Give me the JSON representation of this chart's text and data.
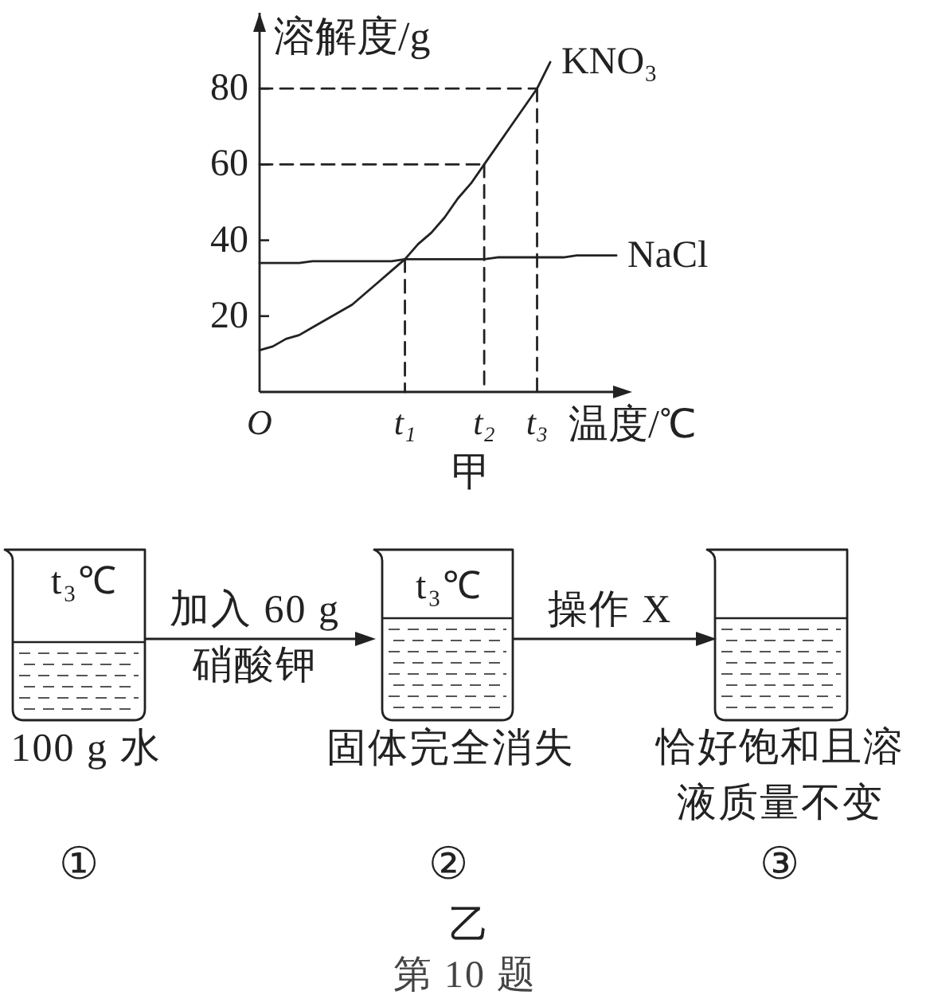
{
  "chart_data": [
    {
      "type": "line",
      "xlabel": "温度/℃",
      "ylabel": "溶解度/g",
      "categories": [
        "O",
        null,
        null,
        null,
        null,
        null,
        null,
        null,
        null,
        null,
        null,
        "t₁",
        null,
        null,
        null,
        null,
        null,
        "t₂",
        null,
        null,
        null,
        "t₃",
        null,
        null,
        null,
        null,
        null,
        null
      ],
      "series": [
        {
          "name": "KNO₃",
          "color": "#222222",
          "values": [
            11,
            12,
            14,
            15,
            17,
            19,
            21,
            23,
            26,
            29,
            32,
            35,
            39,
            42,
            46,
            51,
            55,
            60,
            65,
            70,
            75,
            80,
            87,
            null,
            null,
            null,
            null,
            null
          ]
        },
        {
          "name": "NaCl",
          "color": "#222222",
          "values": [
            34,
            34,
            34,
            34,
            34.5,
            34.5,
            34.5,
            34.5,
            34.5,
            34.5,
            34.5,
            35,
            35,
            35,
            35,
            35,
            35,
            35,
            35.5,
            35.5,
            35.5,
            35.5,
            35.5,
            35.5,
            36,
            36,
            36,
            36
          ]
        },
        {
          "color": "#222222",
          "line_style": "dashed",
          "values": [
            80,
            80,
            80,
            80,
            80,
            80,
            80,
            80,
            80,
            80,
            80,
            80,
            80,
            80,
            80,
            80,
            80,
            80,
            80,
            80,
            80,
            80,
            null,
            null,
            null,
            null,
            null,
            null
          ]
        },
        {
          "color": "#222222",
          "line_style": "dashed",
          "x": [
            "t₃",
            "t₃"
          ],
          "values": [
            80,
            0
          ]
        },
        {
          "color": "#222222",
          "line_style": "dashed",
          "values": [
            60,
            60,
            60,
            60,
            60,
            60,
            60,
            60,
            60,
            60,
            60,
            60,
            60,
            60,
            60,
            60,
            60,
            60,
            null,
            null,
            null,
            null,
            null,
            null,
            null,
            null,
            null,
            null
          ]
        },
        {
          "color": "#222222",
          "line_style": "dashed",
          "x": [
            "t₂",
            "t₂"
          ],
          "values": [
            60,
            0
          ]
        },
        {
          "color": "#222222",
          "line_style": "dashed",
          "x": [
            "t₁",
            "t₁"
          ],
          "values": [
            35,
            0
          ]
        }
      ],
      "ylim": [
        0,
        100
      ],
      "yticks": [
        20,
        40,
        60,
        80
      ],
      "annotations": [
        "甲"
      ]
    },
    {
      "type": "other",
      "annotations": [
        "t₃℃",
        "t₃℃",
        "加入 60 g",
        "硝酸钾",
        "操作 X",
        "100 g 水",
        "固体完全消失",
        "恰好饱和且溶液质量不变",
        "①",
        "②",
        "③",
        "乙",
        "第 10 题"
      ]
    }
  ]
}
